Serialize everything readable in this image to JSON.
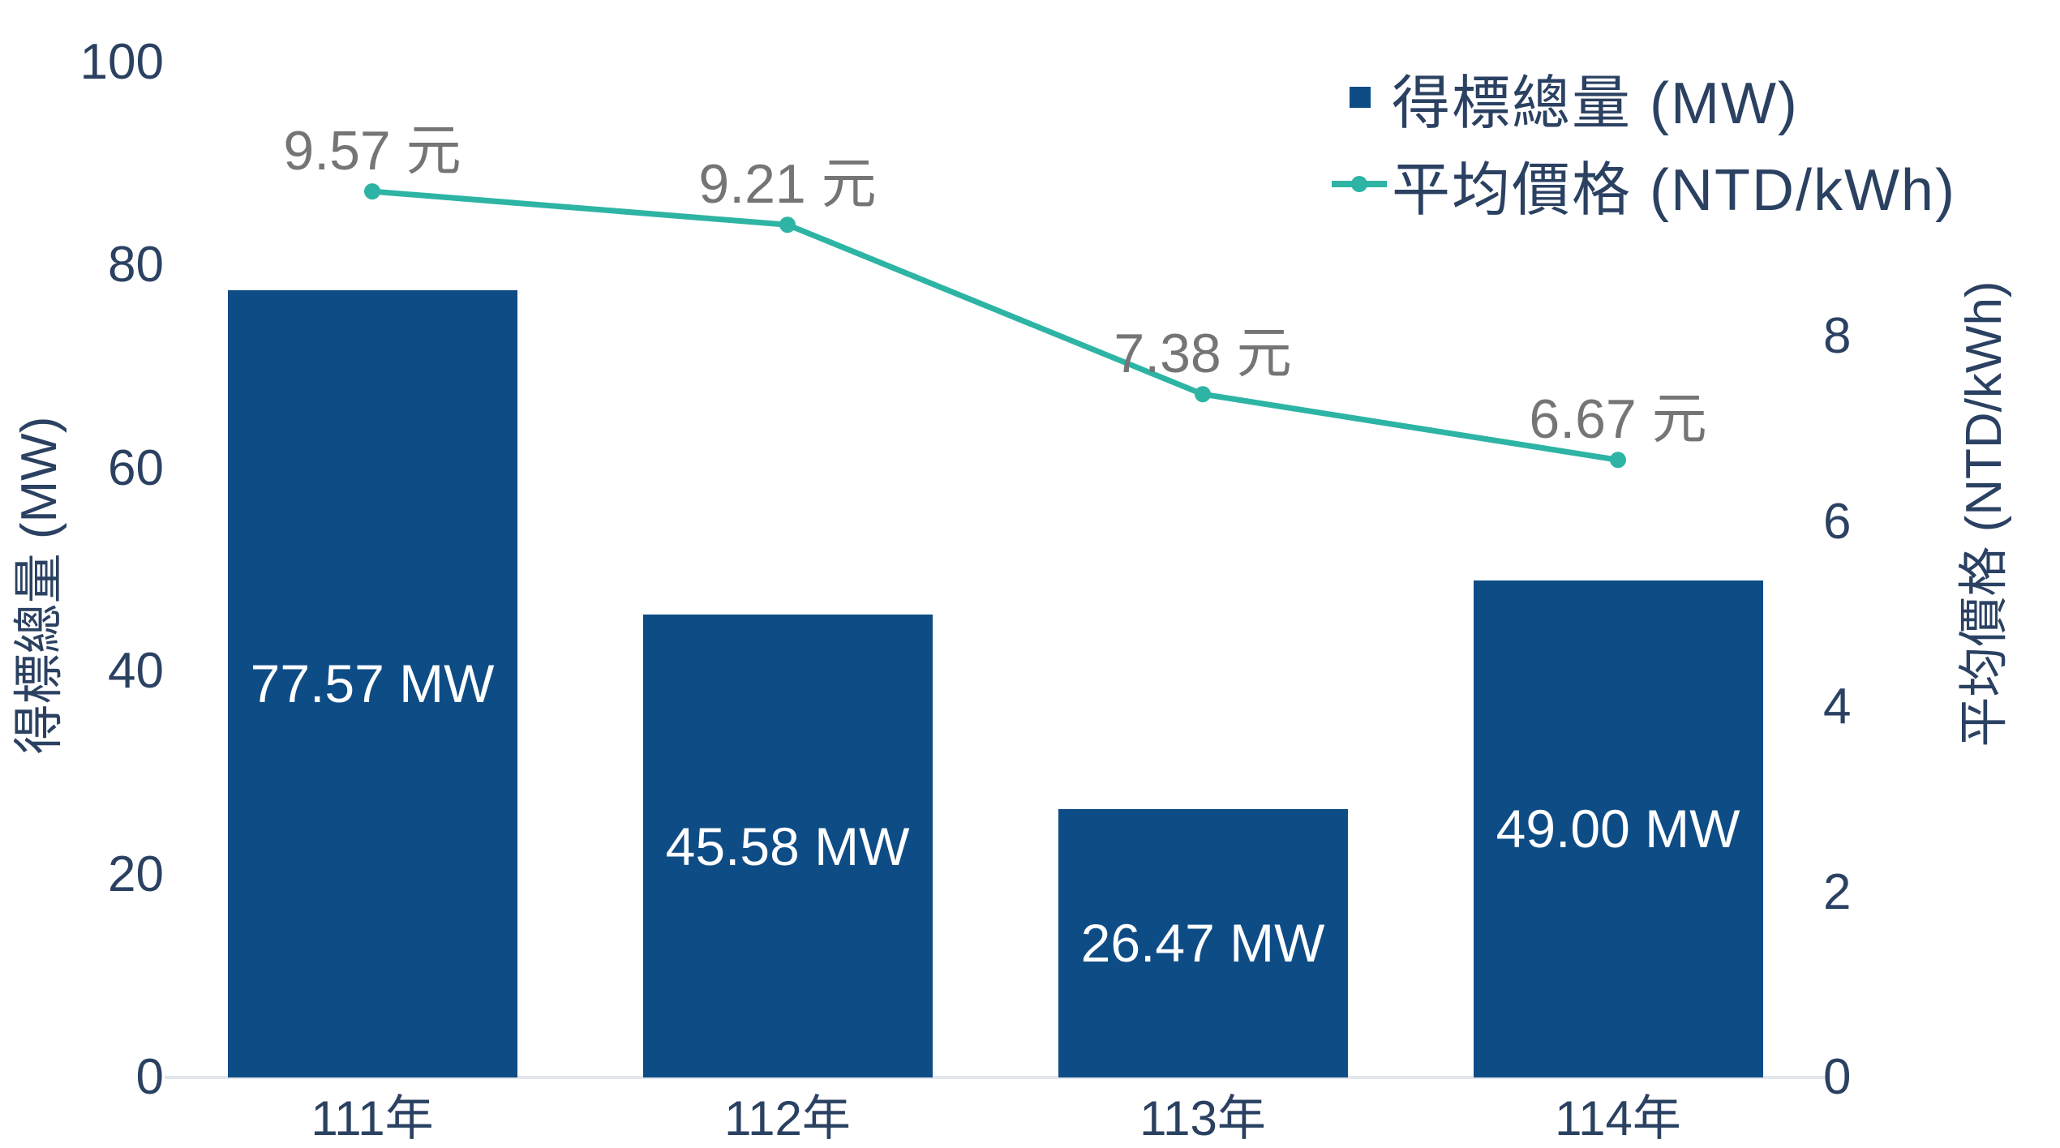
{
  "chart_data": {
    "type": "bar",
    "subtype": "combo-bar-line",
    "categories": [
      "111年",
      "112年",
      "113年",
      "114年"
    ],
    "series": [
      {
        "name": "得標總量 (MW)",
        "type": "bar",
        "axis": "left",
        "values": [
          77.57,
          45.58,
          26.47,
          49.0
        ],
        "labels": [
          "77.57 MW",
          "45.58 MW",
          "26.47 MW",
          "49.00 MW"
        ]
      },
      {
        "name": "平均價格 (NTD/kWh)",
        "type": "line",
        "axis": "right",
        "values": [
          9.57,
          9.21,
          7.38,
          6.67
        ],
        "labels": [
          "9.57 元",
          "9.21 元",
          "7.38 元",
          "6.67 元"
        ]
      }
    ],
    "left_axis": {
      "title": "得標總量 (MW)",
      "min": 0,
      "max": 100,
      "ticks": [
        0,
        20,
        40,
        60,
        80,
        100
      ]
    },
    "right_axis": {
      "title": "平均價格 (NTD/kWh)",
      "min": 0,
      "ticks": [
        0,
        2,
        4,
        6,
        8
      ]
    },
    "legend": {
      "position": "top-right",
      "entries": [
        "得標總量 (MW)",
        "平均價格 (NTD/kWh)"
      ]
    },
    "grid": false
  },
  "colors": {
    "bar_fill": "#0E4C86",
    "line_stroke": "#2DB4A4",
    "navy_text": "#2B4162",
    "gray_label": "#757575",
    "bar_label": "#FFFFFF",
    "axis_line": "#E4E7EC",
    "background": "#FFFFFF"
  }
}
